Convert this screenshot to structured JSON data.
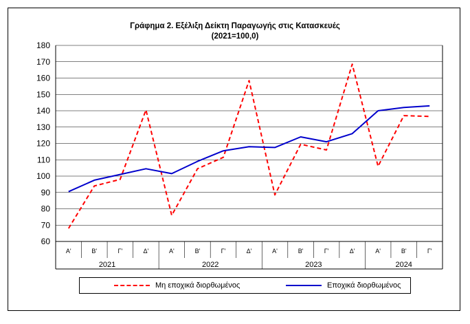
{
  "chart_data": {
    "type": "line",
    "title": "Γράφημα 2. Εξέλιξη  Δείκτη  Παραγωγής  στις Κατασκευές",
    "subtitle": "(2021=100,0)",
    "ylim": [
      60,
      180
    ],
    "yticks": [
      60,
      70,
      80,
      90,
      100,
      110,
      120,
      130,
      140,
      150,
      160,
      170,
      180
    ],
    "grid": true,
    "quarters": [
      "Α'",
      "Β'",
      "Γ'",
      "Δ'",
      "Α'",
      "Β'",
      "Γ'",
      "Δ'",
      "Α'",
      "Β'",
      "Γ'",
      "Δ'",
      "Α'",
      "Β'",
      "Γ'"
    ],
    "years": [
      {
        "label": "2021",
        "span": 4
      },
      {
        "label": "2022",
        "span": 4
      },
      {
        "label": "2023",
        "span": 4
      },
      {
        "label": "2024",
        "span": 3
      }
    ],
    "series": [
      {
        "name": "Μη εποχικά διορθωμένος",
        "color": "#ff0000",
        "style": "dashed",
        "values": [
          68.0,
          94.0,
          98.0,
          140.5,
          76.0,
          104.5,
          111.5,
          158.5,
          88.5,
          119.5,
          116.0,
          168.5,
          106.0,
          137.0,
          136.5
        ]
      },
      {
        "name": "Εποχικά διορθωμένος",
        "color": "#0000cc",
        "style": "solid",
        "values": [
          90.5,
          97.5,
          101.0,
          104.5,
          101.5,
          109.0,
          115.5,
          118.0,
          117.5,
          124.0,
          121.0,
          126.0,
          140.0,
          142.0,
          143.0
        ]
      }
    ],
    "legend_position": "bottom"
  }
}
